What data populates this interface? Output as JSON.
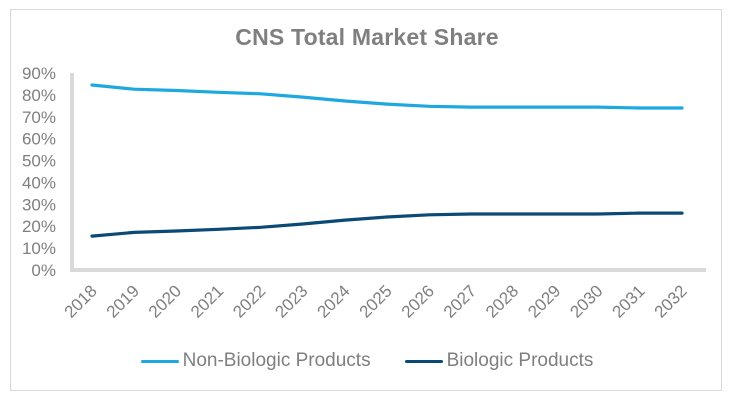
{
  "chart_data": {
    "type": "line",
    "title": "CNS Total Market Share",
    "xlabel": "",
    "ylabel": "",
    "ylim": [
      0,
      0.9
    ],
    "y_tick_labels": [
      "0%",
      "10%",
      "20%",
      "30%",
      "40%",
      "50%",
      "60%",
      "70%",
      "80%",
      "90%"
    ],
    "y_ticks": [
      0,
      0.1,
      0.2,
      0.3,
      0.4,
      0.5,
      0.6,
      0.7,
      0.8,
      0.9
    ],
    "categories": [
      "2018",
      "2019",
      "2020",
      "2021",
      "2022",
      "2023",
      "2024",
      "2025",
      "2026",
      "2027",
      "2028",
      "2029",
      "2030",
      "2031",
      "2032"
    ],
    "series": [
      {
        "name": "Non-Biologic Products",
        "color": "#1ea8e0",
        "values": [
          0.845,
          0.826,
          0.82,
          0.812,
          0.805,
          0.79,
          0.772,
          0.758,
          0.748,
          0.744,
          0.744,
          0.744,
          0.744,
          0.74,
          0.74
        ]
      },
      {
        "name": "Biologic Products",
        "color": "#0b4a75",
        "values": [
          0.155,
          0.172,
          0.178,
          0.186,
          0.195,
          0.21,
          0.228,
          0.242,
          0.252,
          0.256,
          0.256,
          0.256,
          0.256,
          0.26,
          0.26
        ]
      }
    ],
    "grid": false,
    "legend_position": "bottom"
  }
}
